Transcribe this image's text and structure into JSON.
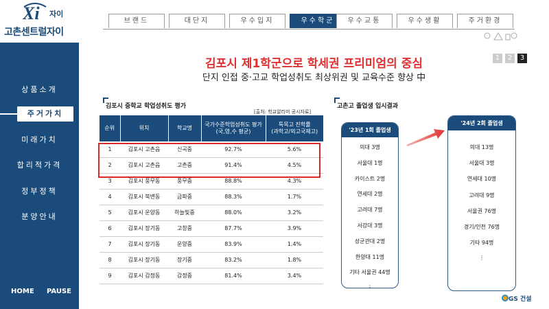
{
  "brand": {
    "logo_small": "자이",
    "name": "고촌센트럴자이"
  },
  "sidebar": {
    "items": [
      {
        "label": "상품소개"
      },
      {
        "label": "주거가치"
      },
      {
        "label": "미래가치"
      },
      {
        "label": "합리적가격"
      },
      {
        "label": "정부정책"
      },
      {
        "label": "분양안내"
      }
    ],
    "active_index": 1,
    "home": "HOME",
    "pause": "PAUSE"
  },
  "topnav": {
    "tabs": [
      {
        "label": "브랜드"
      },
      {
        "label": "대단지"
      },
      {
        "label": "우수입지"
      },
      {
        "label": "우수학군"
      },
      {
        "label": "우수교통"
      },
      {
        "label": "우수생활"
      },
      {
        "label": "주거환경"
      }
    ],
    "active_index": 3
  },
  "header": {
    "title": "김포시 제1학군으로 학세권 프리미엄의 중심",
    "subtitle": "단지 인접 중·고교 학업성취도 최상위권 및 교육수준 향상 中"
  },
  "pager": {
    "pages": [
      "1",
      "2",
      "3"
    ],
    "current": "3"
  },
  "left_section": {
    "heading": "김포시 중학교 학업성취도 평가",
    "source": "[출처: 학교알리미 공시자료]",
    "columns": [
      "순위",
      "위치",
      "학교명",
      "국가수준학업성취도 평가\n(국,영,수 평균)",
      "특목고 진학률\n(과학고/외고국제고)"
    ],
    "rows": [
      [
        "1",
        "김포시 고촌읍",
        "신곡중",
        "92.7%",
        "5.6%"
      ],
      [
        "2",
        "김포시 고촌읍",
        "고촌중",
        "91.4%",
        "4.5%"
      ],
      [
        "3",
        "김포시 풍무동",
        "풍무중",
        "88.8%",
        "4.3%"
      ],
      [
        "4",
        "김포시 북변동",
        "금파중",
        "88.3%",
        "1.7%"
      ],
      [
        "5",
        "김포시 운양동",
        "하늘빛중",
        "88.0%",
        "3.2%"
      ],
      [
        "6",
        "김포시 장기동",
        "고창중",
        "87.7%",
        "3.9%"
      ],
      [
        "7",
        "김포시 장기동",
        "운양중",
        "83.9%",
        "1.4%"
      ],
      [
        "8",
        "김포시 장기동",
        "장기중",
        "83.2%",
        "1.8%"
      ],
      [
        "9",
        "김포시 감정동",
        "감정중",
        "81.4%",
        "3.4%"
      ]
    ]
  },
  "right_section": {
    "heading": "고촌고 졸업생 입시결과",
    "card_2023": {
      "title": "'23년 1회 졸업생",
      "items": [
        "의대 3명",
        "서울대 1명",
        "카이스트 2명",
        "연세대 2명",
        "고려대 7명",
        "서강대 3명",
        "성균관대 2명",
        "한양대 11명",
        "기타 서울권 44명",
        "⋮"
      ]
    },
    "card_2024": {
      "title": "'24년 2회 졸업생",
      "items": [
        "의대 13명",
        "서울대 3명",
        "연세대 10명",
        "고려대 9명",
        "서울권 76명",
        "경기/인천 76명",
        "기타 94명",
        "⋮"
      ]
    }
  },
  "footer": {
    "company": "GS 건설"
  },
  "colors": {
    "navy": "#1b4b7a",
    "red": "#e03131",
    "highlight": "#d72b2b"
  }
}
